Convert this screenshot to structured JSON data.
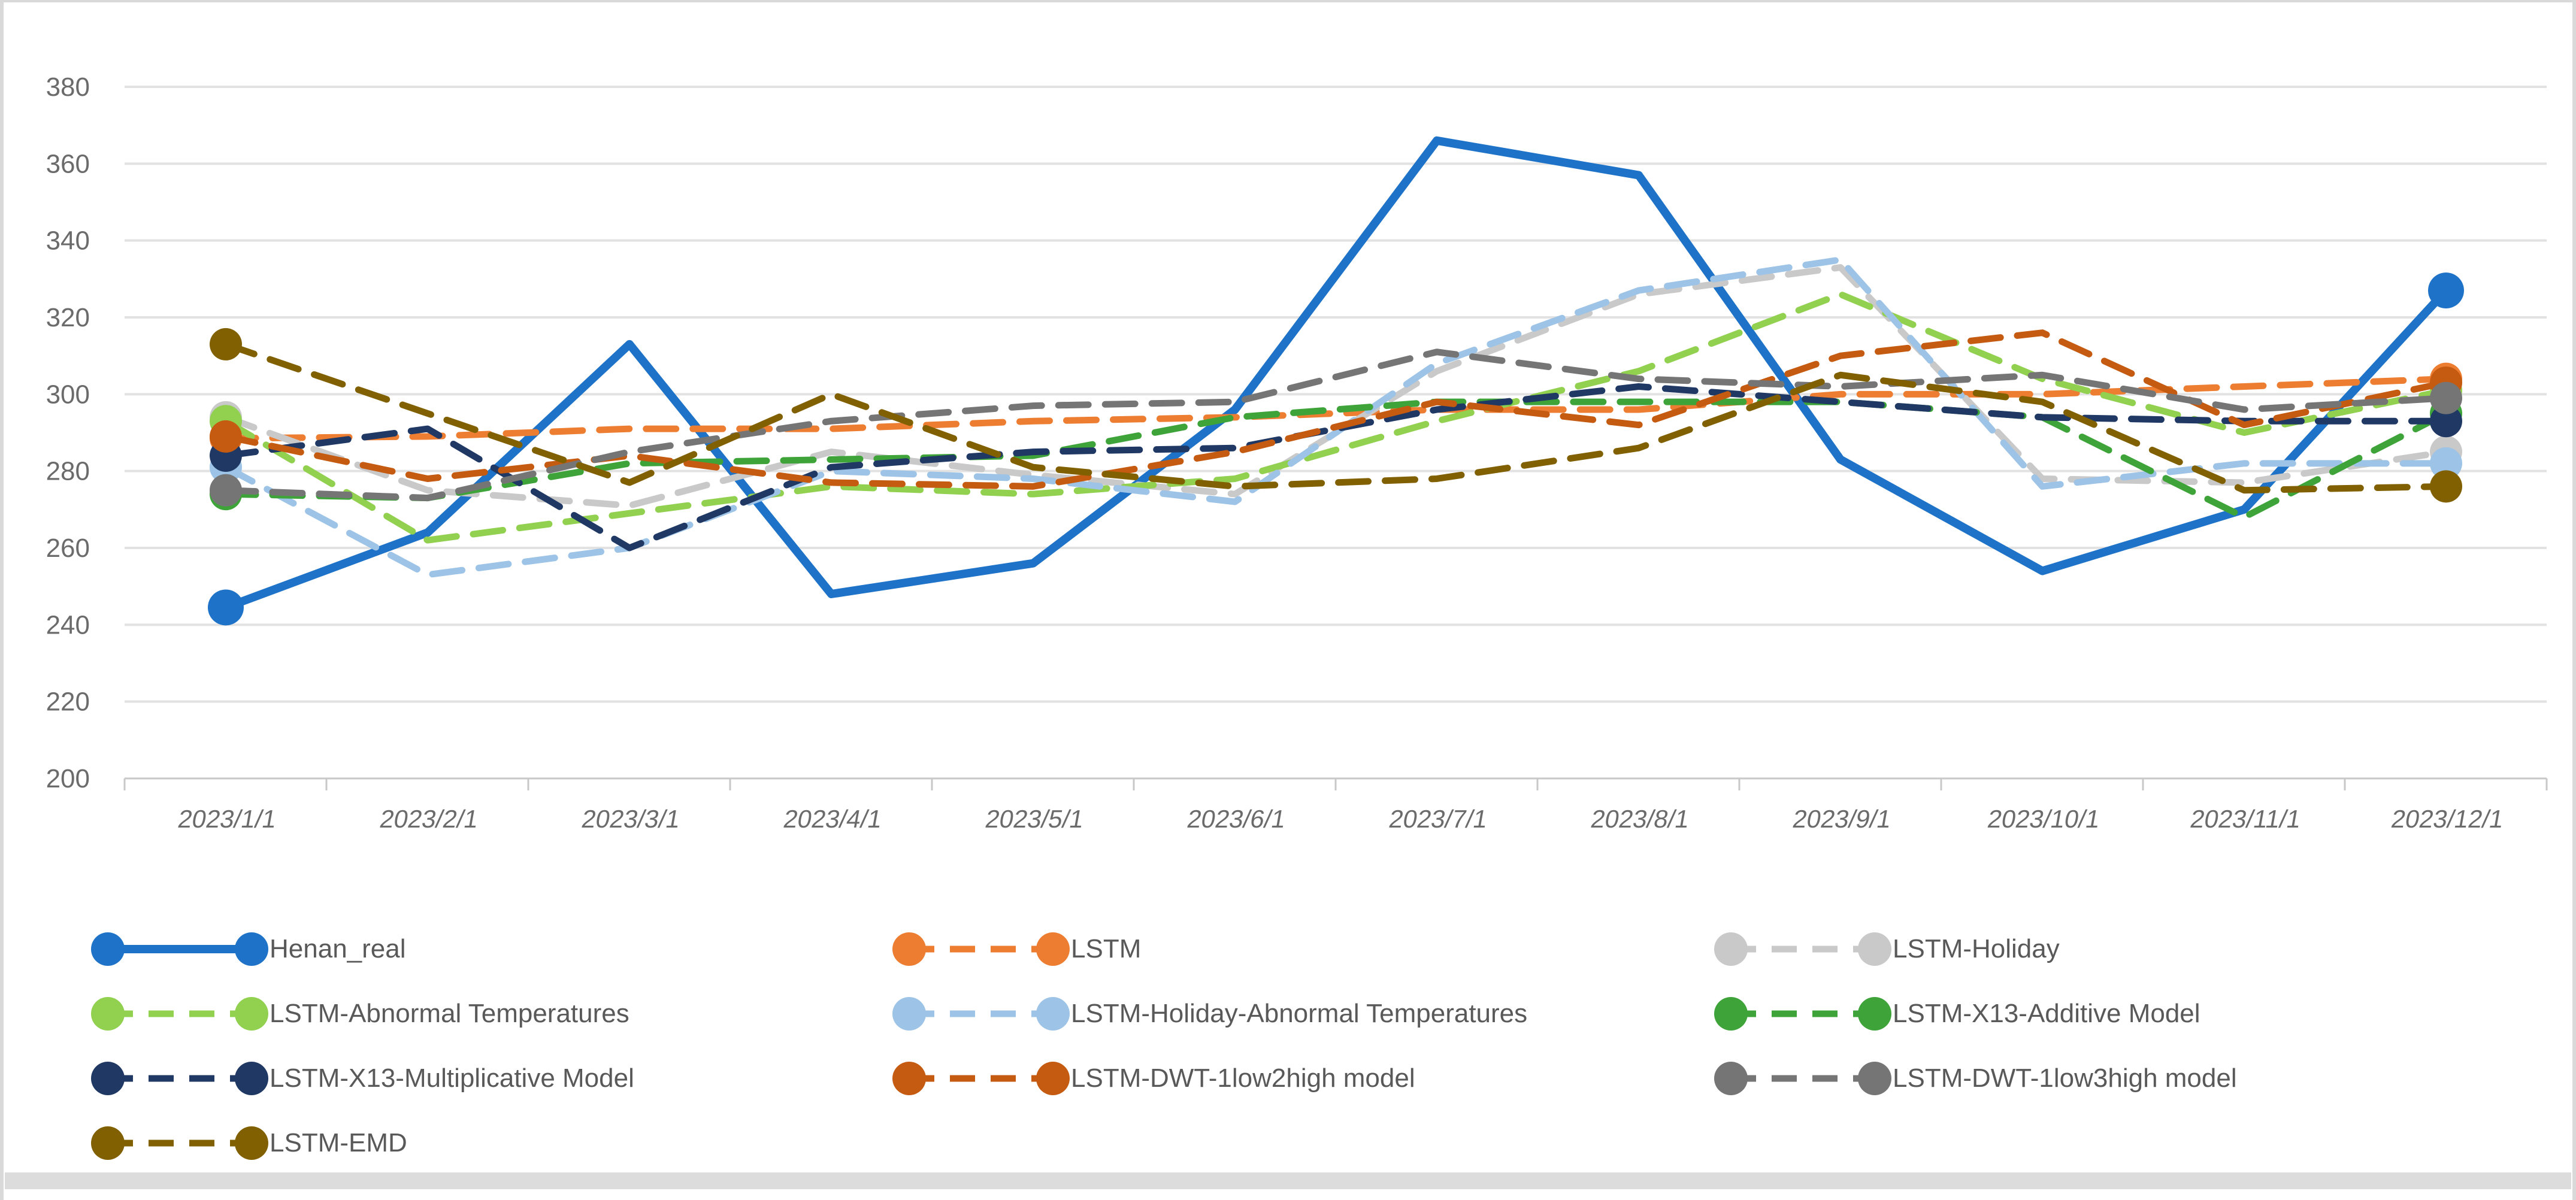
{
  "window": {
    "bottom_bar": true
  },
  "chart_data": {
    "type": "line",
    "title": "",
    "xlabel": "",
    "ylabel": "",
    "ylim": [
      200,
      380
    ],
    "y_ticks": [
      200,
      220,
      240,
      260,
      280,
      300,
      320,
      340,
      360,
      380
    ],
    "grid": "horizontal",
    "legend_position": "bottom-left",
    "categories": [
      "2023/1/1",
      "2023/2/1",
      "2023/3/1",
      "2023/4/1",
      "2023/5/1",
      "2023/6/1",
      "2023/7/1",
      "2023/8/1",
      "2023/9/1",
      "2023/10/1",
      "2023/11/1",
      "2023/12/1"
    ],
    "marker_note": "round markers shown only on first and last data point of each series",
    "series": [
      {
        "name": "Henan_real",
        "color": "#1E73C8",
        "dashed": false,
        "values": [
          244.5,
          264,
          313,
          248,
          256,
          296,
          366,
          357,
          283,
          254,
          270,
          327
        ]
      },
      {
        "name": "LSTM",
        "color": "#ED7D31",
        "dashed": true,
        "values": [
          288.5,
          289,
          291,
          291,
          293,
          294,
          296,
          296,
          300,
          300,
          302,
          304
        ]
      },
      {
        "name": "LSTM-Holiday",
        "color": "#C9C9C9",
        "dashed": true,
        "values": [
          294,
          275,
          271,
          285,
          279,
          274,
          306,
          326,
          333,
          278,
          277,
          285
        ]
      },
      {
        "name": "LSTM-Abnormal Temperatures",
        "color": "#92D050",
        "dashed": true,
        "values": [
          293,
          262,
          269,
          276,
          274,
          278,
          293,
          306,
          326,
          304,
          290,
          301
        ]
      },
      {
        "name": "LSTM-Holiday-Abnormal Temperatures",
        "color": "#9DC3E6",
        "dashed": true,
        "values": [
          281,
          253,
          260,
          280,
          278,
          272,
          308,
          327,
          335,
          276,
          282,
          282
        ]
      },
      {
        "name": "LSTM-X13-Additive Model",
        "color": "#3EA43A",
        "dashed": true,
        "values": [
          274,
          273,
          282,
          283,
          284,
          294,
          298,
          298,
          298,
          294,
          268,
          295
        ]
      },
      {
        "name": "LSTM-X13-Multiplicative Model",
        "color": "#1F3864",
        "dashed": true,
        "values": [
          284,
          291,
          260,
          281,
          285,
          286,
          296,
          302,
          298,
          294,
          293,
          293
        ]
      },
      {
        "name": "LSTM-DWT-1low2high model",
        "color": "#C55A11",
        "dashed": true,
        "values": [
          289,
          278,
          284,
          277,
          276,
          285,
          298,
          292,
          310,
          316,
          292,
          303
        ]
      },
      {
        "name": "LSTM-DWT-1low3high model",
        "color": "#757575",
        "dashed": true,
        "values": [
          275,
          273,
          285,
          293,
          297,
          298,
          311,
          304,
          302,
          305,
          296,
          299
        ]
      },
      {
        "name": "LSTM-EMD",
        "color": "#806000",
        "dashed": true,
        "values": [
          313,
          295,
          277,
          300,
          281,
          276,
          278,
          286,
          305,
          298,
          275,
          276
        ]
      }
    ],
    "colors": {
      "gridline": "#E2E2E2",
      "axis_line": "#C8C8C8",
      "tick": "#C8C8C8",
      "axis_text": "#6b6b6b",
      "legend_text": "#595959"
    }
  }
}
